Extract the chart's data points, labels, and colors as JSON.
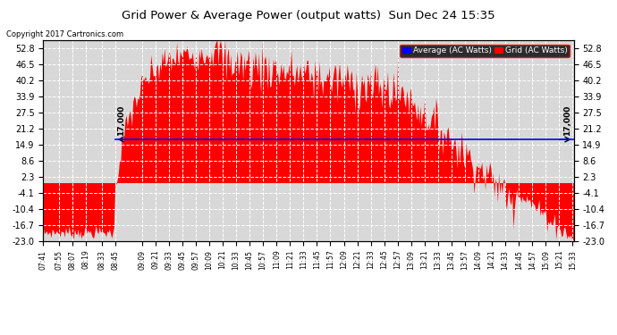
{
  "title": "Grid Power & Average Power (output watts)  Sun Dec 24 15:35",
  "copyright": "Copyright 2017 Cartronics.com",
  "background_color": "#ffffff",
  "plot_bg_color": "#d8d8d8",
  "grid_color": "#ffffff",
  "fill_color": "#ff0000",
  "line_color": "#0000ff",
  "avg_value": 17.0,
  "avg_label": "17,000",
  "yticks": [
    52.8,
    46.5,
    40.2,
    33.9,
    27.5,
    21.2,
    14.9,
    8.6,
    2.3,
    -4.1,
    -10.4,
    -16.7,
    -23.0
  ],
  "ylim": [
    -23.0,
    56.0
  ],
  "legend_average": "Average (AC Watts)",
  "legend_grid": "Grid (AC Watts)",
  "xtick_labels": [
    "07:41",
    "07:55",
    "08:07",
    "08:19",
    "08:33",
    "08:45",
    "09:09",
    "09:21",
    "09:33",
    "09:45",
    "09:57",
    "10:09",
    "10:21",
    "10:33",
    "10:45",
    "10:57",
    "11:09",
    "11:21",
    "11:33",
    "11:45",
    "11:57",
    "12:09",
    "12:21",
    "12:33",
    "12:45",
    "12:57",
    "13:09",
    "13:21",
    "13:33",
    "13:45",
    "13:57",
    "14:09",
    "14:21",
    "14:33",
    "14:45",
    "14:57",
    "15:09",
    "15:21",
    "15:33"
  ]
}
